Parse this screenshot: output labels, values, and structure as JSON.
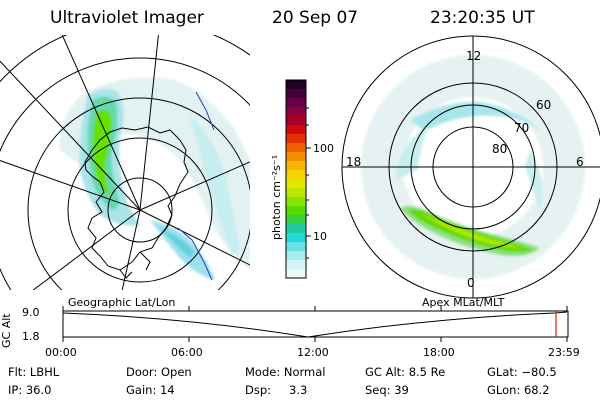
{
  "header": {
    "instrument": "Ultraviolet Imager",
    "date": "20 Sep 07",
    "time": "23:20:35 UT"
  },
  "left_panel": {
    "caption": "Geographic Lat/Lon"
  },
  "right_panel": {
    "caption": "Apex MLat/MLT",
    "mlt_labels": {
      "top": "12",
      "left": "18",
      "right": "6",
      "bottom": "0"
    },
    "lat_labels": [
      "60",
      "70",
      "80"
    ]
  },
  "colorbar": {
    "unit_label": "photon cm⁻²s⁻¹",
    "tick_labels": [
      "100",
      "10"
    ],
    "colors": [
      "#220022",
      "#44003a",
      "#66004a",
      "#8a0040",
      "#aa0028",
      "#cc0a10",
      "#e23000",
      "#f06000",
      "#f58c00",
      "#f7b400",
      "#f4d400",
      "#e0e800",
      "#b8e800",
      "#88e400",
      "#55dc00",
      "#33d040",
      "#22c8a0",
      "#22d8d8",
      "#66e2e8",
      "#a8ecf0",
      "#d2f4f6",
      "#ecf8f8"
    ]
  },
  "timeline": {
    "y_axis_label": "GC Alt",
    "y_ticks": [
      "9.0",
      "1.8"
    ],
    "x_ticks": [
      "00:00",
      "06:00",
      "12:00",
      "18:00",
      "23:59"
    ],
    "marker_color": "#e02000"
  },
  "info": {
    "row1": [
      "Flt: LBHL",
      "Door: Open",
      "Mode: Normal",
      "GC Alt: 8.5 Re",
      "GLat: −80.5"
    ],
    "row2": [
      "IP: 36.0",
      "Gain: 14",
      "Dsp:",
      "3.3",
      "Seq: 39",
      "GLon: 68.2"
    ]
  }
}
